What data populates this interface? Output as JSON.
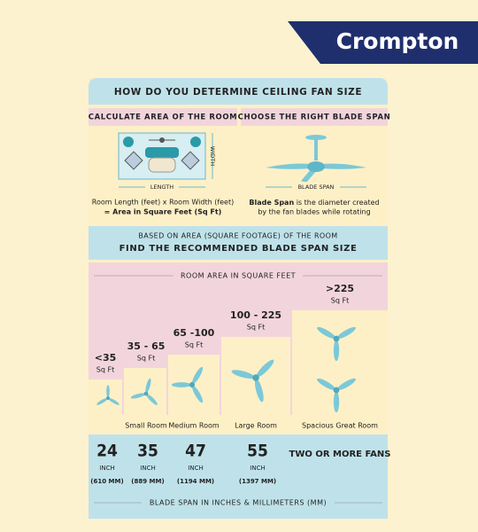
{
  "brand": "Crompton",
  "header": {
    "title": "HOW DO YOU DETERMINE CEILING FAN SIZE"
  },
  "calculate": {
    "heading": "CALCULATE AREA OF THE ROOM",
    "length_label": "LENGTH",
    "width_label": "WIDTH",
    "formula_line1": "Room Length (feet) x Room Width (feet)",
    "formula_line2": "= Area in Square Feet (Sq Ft)"
  },
  "blade": {
    "heading": "CHOOSE THE RIGHT BLADE SPAN",
    "span_label": "BLADE SPAN",
    "description_bold": "Blade Span",
    "description_rest": " is the diameter created",
    "description_line2": "by the fan blades while rotating"
  },
  "recommend": {
    "subtitle": "BASED ON AREA (SQUARE FOOTAGE) OF THE ROOM",
    "title": "FIND THE RECOMMENDED BLADE SPAN SIZE"
  },
  "area_label": "ROOM AREA IN SQUARE FEET",
  "rooms": [
    {
      "area": "<35",
      "unit": "Sq Ft",
      "inches": "24",
      "inch_unit": "INCH",
      "mm": "(610 MM)"
    },
    {
      "area": "35 - 65",
      "unit": "Sq Ft",
      "name": "Small Room",
      "inches": "35",
      "inch_unit": "INCH",
      "mm": "(889 MM)"
    },
    {
      "area": "65 -100",
      "unit": "Sq Ft",
      "name": "Medium Room",
      "inches": "47",
      "inch_unit": "INCH",
      "mm": "(1194 MM)"
    },
    {
      "area": "100 - 225",
      "unit": "Sq Ft",
      "name": "Large Room",
      "inches": "55",
      "inch_unit": "INCH",
      "mm": "(1397 MM)"
    },
    {
      "area": ">225",
      "unit": "Sq Ft",
      "name": "Spacious Great Room",
      "note": "TWO OR MORE FANS"
    }
  ],
  "footer": "BLADE SPAN IN INCHES & MILLIMETERS (MM)"
}
